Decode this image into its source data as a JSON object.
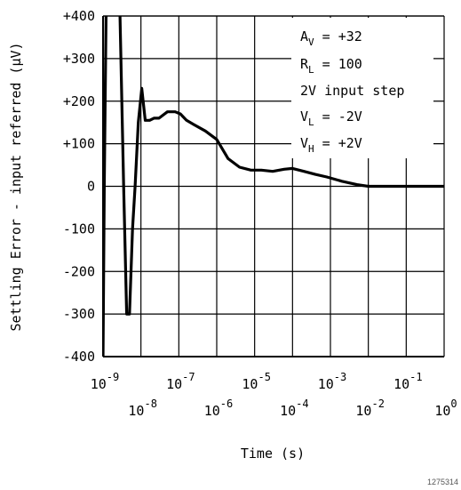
{
  "chart_data": {
    "type": "line",
    "title": "",
    "xlabel": "Time (s)",
    "ylabel": "Settling Error - input referred (μV)",
    "x_scale": "log",
    "xlim": [
      1e-09,
      1
    ],
    "ylim": [
      -400,
      400
    ],
    "grid": true,
    "x_ticks": [
      {
        "value": 1e-09,
        "base": "10",
        "exp": "-9",
        "row": "upper"
      },
      {
        "value": 1e-08,
        "base": "10",
        "exp": "-8",
        "row": "lower"
      },
      {
        "value": 1e-07,
        "base": "10",
        "exp": "-7",
        "row": "upper"
      },
      {
        "value": 1e-06,
        "base": "10",
        "exp": "-6",
        "row": "lower"
      },
      {
        "value": 1e-05,
        "base": "10",
        "exp": "-5",
        "row": "upper"
      },
      {
        "value": 0.0001,
        "base": "10",
        "exp": "-4",
        "row": "lower"
      },
      {
        "value": 0.001,
        "base": "10",
        "exp": "-3",
        "row": "upper"
      },
      {
        "value": 0.01,
        "base": "10",
        "exp": "-2",
        "row": "lower"
      },
      {
        "value": 0.1,
        "base": "10",
        "exp": "-1",
        "row": "upper"
      },
      {
        "value": 1,
        "base": "10",
        "exp": "0",
        "row": "lower"
      }
    ],
    "y_ticks": [
      {
        "value": 400,
        "label": "+400"
      },
      {
        "value": 300,
        "label": "+300"
      },
      {
        "value": 200,
        "label": "+200"
      },
      {
        "value": 100,
        "label": "+100"
      },
      {
        "value": 0,
        "label": "0"
      },
      {
        "value": -100,
        "label": "-100"
      },
      {
        "value": -200,
        "label": "-200"
      },
      {
        "value": -300,
        "label": "-300"
      },
      {
        "value": -400,
        "label": "-400"
      }
    ],
    "series": [
      {
        "color": "#000000",
        "x": [
          1e-09,
          1.08e-09,
          1.2e-09,
          1.5e-09,
          2.2e-09,
          2.8e-09,
          3.5e-09,
          4.2e-09,
          5e-09,
          6e-09,
          7e-09,
          8.5e-09,
          1.05e-08,
          1.3e-08,
          1.7e-08,
          2.2e-08,
          3e-08,
          5e-08,
          8e-08,
          1.1e-07,
          1.6e-07,
          2.5e-07,
          5e-07,
          1e-06,
          2e-06,
          4e-06,
          8e-06,
          1.5e-05,
          3e-05,
          6e-05,
          0.0001,
          0.0002,
          0.0004,
          0.0008,
          0.002,
          0.005,
          0.01,
          0.02,
          0.1,
          1
        ],
        "y": [
          -400,
          0,
          400,
          450,
          450,
          400,
          0,
          -300,
          -300,
          -100,
          0,
          150,
          230,
          155,
          155,
          160,
          160,
          175,
          175,
          170,
          155,
          145,
          130,
          110,
          65,
          45,
          38,
          38,
          35,
          40,
          42,
          35,
          28,
          22,
          12,
          4,
          0,
          0,
          0,
          0
        ]
      }
    ],
    "annotations": [
      {
        "main": "A",
        "sub": "V",
        "rest": " = +32"
      },
      {
        "main": "R",
        "sub": "L",
        "rest": " = 100"
      },
      {
        "main": "2V input step",
        "sub": "",
        "rest": ""
      },
      {
        "main": "V",
        "sub": "L",
        "rest": " = -2V"
      },
      {
        "main": "V",
        "sub": "H",
        "rest": " = +2V"
      }
    ],
    "figure_id": "1275314"
  }
}
